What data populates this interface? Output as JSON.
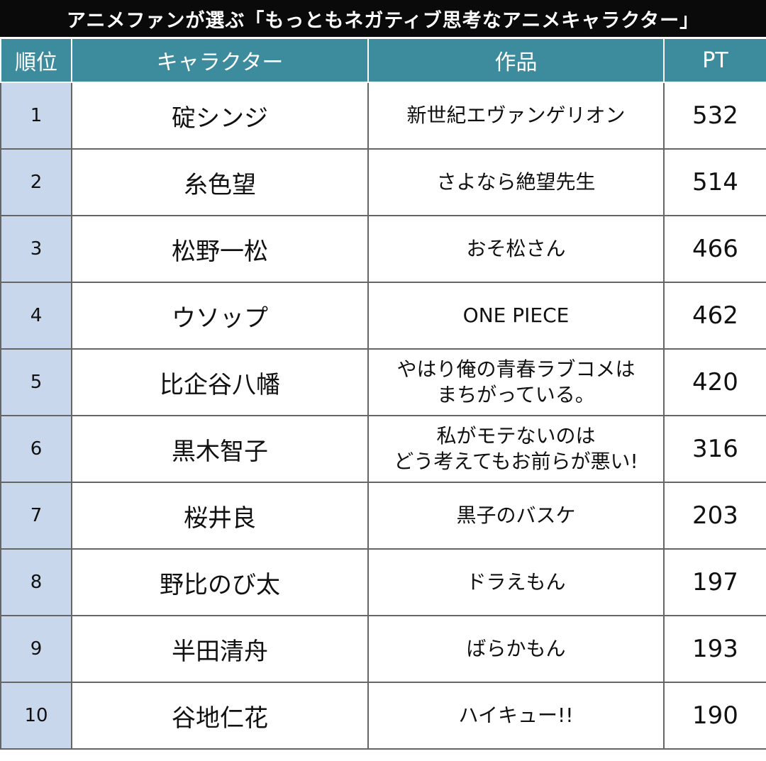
{
  "title": "アニメファンが選ぶ「もっともネガティブ思考なアニメキャラクター」",
  "table": {
    "header": [
      "順位",
      "キャラクター",
      "作品",
      "PT"
    ],
    "rows": [
      [
        1,
        "碇シンジ",
        [
          "新世紀エヴァンゲリオン"
        ],
        532
      ],
      [
        2,
        "糸色望",
        [
          "さよなら絶望先生"
        ],
        514
      ],
      [
        3,
        "松野一松",
        [
          "おそ松さん"
        ],
        466
      ],
      [
        4,
        "ウソップ",
        [
          "ONE PIECE"
        ],
        462
      ],
      [
        5,
        "比企谷八幡",
        [
          "やはり俺の青春ラブコメは",
          "まちがっている。"
        ],
        420
      ],
      [
        6,
        "黒木智子",
        [
          "私がモテないのは",
          "どう考えてもお前らが悪い!"
        ],
        316
      ],
      [
        7,
        "桜井良",
        [
          "黒子のバスケ"
        ],
        203
      ],
      [
        8,
        "野比のび太",
        [
          "ドラえもん"
        ],
        197
      ],
      [
        9,
        "半田清舟",
        [
          "ばらかもん"
        ],
        193
      ],
      [
        10,
        "谷地仁花",
        [
          "ハイキュー!!"
        ],
        190
      ]
    ]
  }
}
